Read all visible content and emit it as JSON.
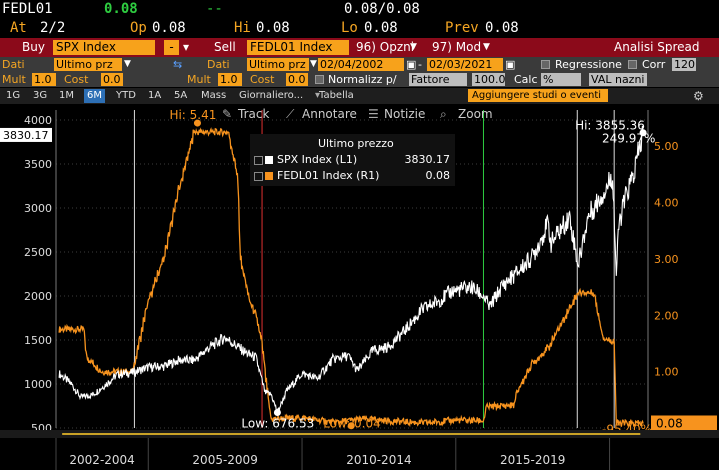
{
  "header": {
    "ticker": "FEDL01",
    "last_price": "0.08",
    "change": "--",
    "bid_ask": "0.08/0.08",
    "at_label": "At",
    "at_value": "2/2",
    "open_label": "Op",
    "open_value": "0.08",
    "high_label": "Hi",
    "high_value": "0.08",
    "low_label": "Lo",
    "low_value": "0.08",
    "prev_label": "Prev",
    "prev_value": "0.08"
  },
  "command_bar": {
    "buy_label": "Buy",
    "buy_security": "SPX Index",
    "minus": "-",
    "sell_label": "Sell",
    "sell_security": "FEDL01 Index",
    "options_label": "96) Opzni",
    "mod_label": "97) Mod",
    "title": "Analisi Spread"
  },
  "params_row1": {
    "dati_label": "Dati",
    "dati_value": "Ultimo prz",
    "dati2_label": "Dati",
    "dati2_value": "Ultimo prz",
    "start_date": "02/04/2002",
    "end_date": "02/03/2021",
    "regression_label": "Regressione",
    "corr_label": "Corr",
    "corr_value": "120"
  },
  "params_row2": {
    "mult_label": "Mult",
    "mult_value": "1.0",
    "cost_label": "Cost",
    "cost_value": "0.0",
    "mult2_label": "Mult",
    "mult2_value": "1.0",
    "cost2_label": "Cost",
    "cost2_value": "0.0",
    "normalize_label": "Normalizz p/",
    "normalize_value": "Fattore",
    "normalize_num": "100.0",
    "calc_label": "Calc",
    "calc_value": "%",
    "val_value": "VAL nazni"
  },
  "timeframes": [
    "1G",
    "3G",
    "1M",
    "6M",
    "YTD",
    "1A",
    "5A",
    "Mass",
    "Giornaliero...",
    "Tabella"
  ],
  "active_timeframe": "6M",
  "add_studies": "Aggiungere studi o eventi",
  "toolbar": {
    "track": "Track",
    "annotate": "Annotare",
    "news": "Notizie",
    "zoom": "Zoom"
  },
  "legend": {
    "title": "Ultimo prezzo",
    "items": [
      {
        "name": "SPX Index  (L1)",
        "value": "3830.17",
        "color": "#ffffff"
      },
      {
        "name": "FEDL01 Index  (R1)",
        "value": "0.08",
        "color": "#f7931e"
      }
    ]
  },
  "chart_data": {
    "type": "line",
    "x_range": [
      "2002-02-04",
      "2021-02-03"
    ],
    "x_tick_labels": [
      "2002-2004",
      "2005-2009",
      "2010-2014",
      "2015-2019"
    ],
    "y_left": {
      "ticks": [
        500,
        1000,
        1500,
        2000,
        2500,
        3000,
        3500,
        4000
      ],
      "range": [
        500,
        4000
      ]
    },
    "y_right": {
      "ticks": [
        "1.00",
        "2.00",
        "3.00",
        "4.00",
        "5.00"
      ],
      "range": [
        0,
        5.5
      ]
    },
    "series": [
      {
        "name": "SPX Index",
        "axis": "left",
        "color": "#ffffff",
        "x": [
          2002.1,
          2002.5,
          2002.8,
          2003.2,
          2003.6,
          2004.0,
          2004.5,
          2005.0,
          2005.5,
          2006.0,
          2006.5,
          2007.0,
          2007.5,
          2007.8,
          2008.2,
          2008.5,
          2008.8,
          2009.0,
          2009.2,
          2009.5,
          2010.0,
          2010.5,
          2011.0,
          2011.5,
          2011.8,
          2012.3,
          2012.8,
          2013.3,
          2013.9,
          2014.5,
          2014.9,
          2015.5,
          2015.9,
          2016.1,
          2016.5,
          2017.0,
          2017.5,
          2018.0,
          2018.1,
          2018.7,
          2018.98,
          2019.3,
          2019.9,
          2020.1,
          2020.22,
          2020.3,
          2020.5,
          2020.8,
          2021.09
        ],
        "y": [
          1120,
          1000,
          850,
          880,
          990,
          1110,
          1130,
          1190,
          1200,
          1270,
          1270,
          1420,
          1530,
          1450,
          1350,
          1300,
          900,
          880,
          676.53,
          920,
          1120,
          1060,
          1280,
          1320,
          1150,
          1380,
          1420,
          1590,
          1840,
          1960,
          2060,
          2100,
          2000,
          1870,
          2110,
          2270,
          2450,
          2820,
          2600,
          2900,
          2350,
          2900,
          3230,
          3380,
          2240,
          2800,
          3100,
          3400,
          3855.36
        ]
      },
      {
        "name": "FEDL01 Index",
        "axis": "right",
        "color": "#f7931e",
        "x": [
          2002.1,
          2002.9,
          2003.0,
          2003.5,
          2004.5,
          2004.6,
          2005.0,
          2005.5,
          2006.0,
          2006.5,
          2007.6,
          2007.9,
          2008.0,
          2008.3,
          2008.5,
          2008.7,
          2008.9,
          2009.0,
          2010.0,
          2011.0,
          2012.0,
          2013.0,
          2014.0,
          2015.0,
          2015.9,
          2016.0,
          2016.9,
          2017.0,
          2017.5,
          2018.0,
          2018.5,
          2018.98,
          2019.5,
          2019.6,
          2019.8,
          2020.0,
          2020.15,
          2020.22,
          2021.09
        ],
        "y": [
          1.75,
          1.75,
          1.25,
          1.0,
          1.0,
          1.25,
          2.25,
          3.0,
          4.25,
          5.25,
          5.25,
          4.5,
          3.0,
          2.25,
          2.0,
          1.5,
          0.5,
          0.16,
          0.18,
          0.1,
          0.16,
          0.12,
          0.09,
          0.14,
          0.13,
          0.37,
          0.41,
          0.66,
          1.15,
          1.42,
          1.91,
          2.4,
          2.4,
          2.1,
          1.6,
          1.55,
          1.55,
          0.08,
          0.08
        ]
      }
    ],
    "annotations": [
      {
        "text": "Hi: 5.41",
        "series": "FEDL01 Index"
      },
      {
        "text": "Low: 676.53",
        "series": "SPX Index"
      },
      {
        "text": "Low: 0.04",
        "series": "FEDL01 Index"
      },
      {
        "text": "Hi: 3855.36",
        "series": "SPX Index"
      },
      {
        "text": "249.97%",
        "series": "SPX Index"
      },
      {
        "text": "-95.40%",
        "series": "FEDL01 Index"
      }
    ],
    "last_values": {
      "left": "3830.17",
      "right": "0.08"
    }
  }
}
